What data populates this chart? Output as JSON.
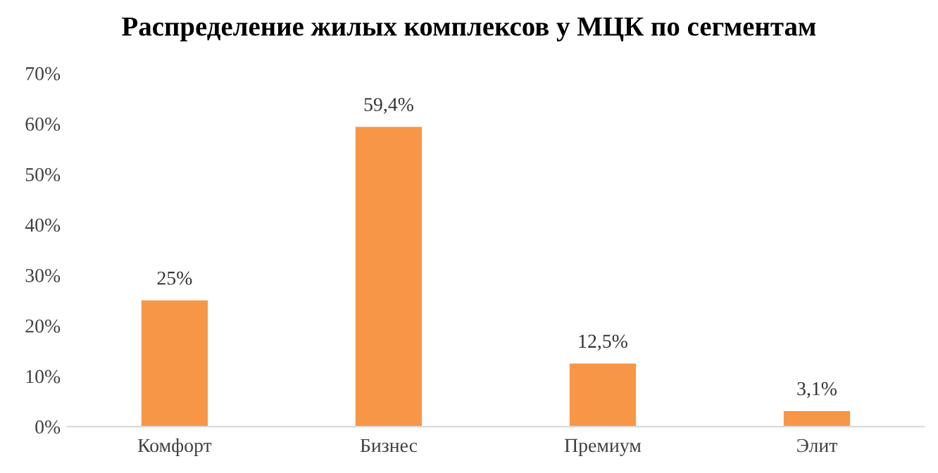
{
  "chart_data": {
    "type": "bar",
    "title": "Распределение жилых комплексов у МЦК по сегментам",
    "categories": [
      "Комфорт",
      "Бизнес",
      "Премиум",
      "Элит"
    ],
    "values": [
      25,
      59.4,
      12.5,
      3.1
    ],
    "value_labels": [
      "25%",
      "59,4%",
      "12,5%",
      "3,1%"
    ],
    "color": "#f79646",
    "ylim": [
      0,
      70
    ],
    "yticks": [
      {
        "value": 0,
        "label": "0%"
      },
      {
        "value": 10,
        "label": "10%"
      },
      {
        "value": 20,
        "label": "20%"
      },
      {
        "value": 30,
        "label": "30%"
      },
      {
        "value": 40,
        "label": "40%"
      },
      {
        "value": 50,
        "label": "50%"
      },
      {
        "value": 60,
        "label": "60%"
      },
      {
        "value": 70,
        "label": "70%"
      }
    ],
    "grid": false,
    "legend": false
  }
}
